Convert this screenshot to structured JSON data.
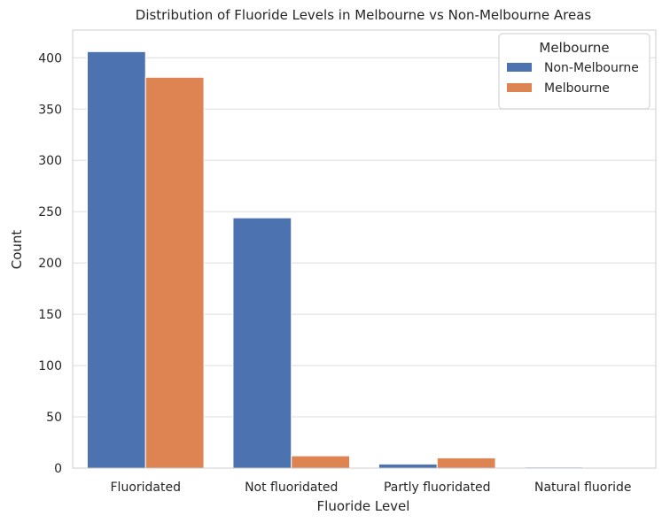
{
  "chart_data": {
    "type": "bar",
    "title": "Distribution of Fluoride Levels in Melbourne vs Non-Melbourne Areas",
    "xlabel": "Fluoride Level",
    "ylabel": "Count",
    "categories": [
      "Fluoridated",
      "Not fluoridated",
      "Partly fluoridated",
      "Natural fluoride"
    ],
    "series": [
      {
        "name": "Non-Melbourne",
        "values": [
          406,
          244,
          4,
          1
        ],
        "color": "#4c72b0"
      },
      {
        "name": "Melbourne",
        "values": [
          381,
          12,
          10,
          0
        ],
        "color": "#dd8452"
      }
    ],
    "ylim": [
      0,
      427
    ],
    "yticks": [
      0,
      50,
      100,
      150,
      200,
      250,
      300,
      350,
      400
    ],
    "grid": true,
    "legend": {
      "title": "Melbourne",
      "position": "top-right"
    }
  }
}
